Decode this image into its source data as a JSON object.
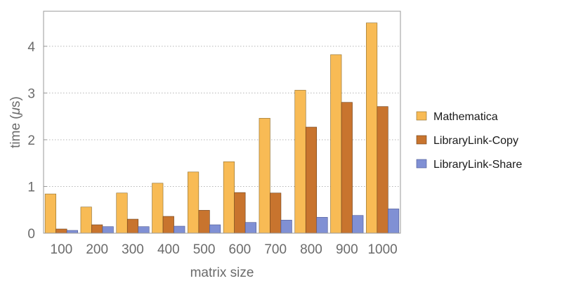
{
  "chart_data": {
    "type": "bar",
    "title": "",
    "xlabel": "matrix size",
    "ylabel_parts": [
      "time (",
      "μ",
      "s)"
    ],
    "categories": [
      "100",
      "200",
      "300",
      "400",
      "500",
      "600",
      "700",
      "800",
      "900",
      "1000"
    ],
    "ylim": [
      0,
      4.75
    ],
    "yticks": [
      0,
      1,
      2,
      3,
      4
    ],
    "ytick_labels": [
      "0",
      "1",
      "2",
      "3",
      "4"
    ],
    "grid": "horizontal dotted",
    "legend_position": "right",
    "series": [
      {
        "name": "Mathematica",
        "color": "#F8BB55",
        "stroke": "#8a6a2a",
        "values": [
          0.84,
          0.56,
          0.86,
          1.07,
          1.31,
          1.53,
          2.46,
          3.06,
          3.82,
          4.5
        ]
      },
      {
        "name": "LibraryLink-Copy",
        "color": "#C8742E",
        "stroke": "#6b3e18",
        "values": [
          0.09,
          0.18,
          0.3,
          0.36,
          0.49,
          0.87,
          0.86,
          2.27,
          2.8,
          2.71
        ]
      },
      {
        "name": "LibraryLink-Share",
        "color": "#8090D4",
        "stroke": "#4a5590",
        "values": [
          0.06,
          0.14,
          0.14,
          0.15,
          0.18,
          0.23,
          0.28,
          0.34,
          0.38,
          0.52
        ]
      }
    ]
  }
}
